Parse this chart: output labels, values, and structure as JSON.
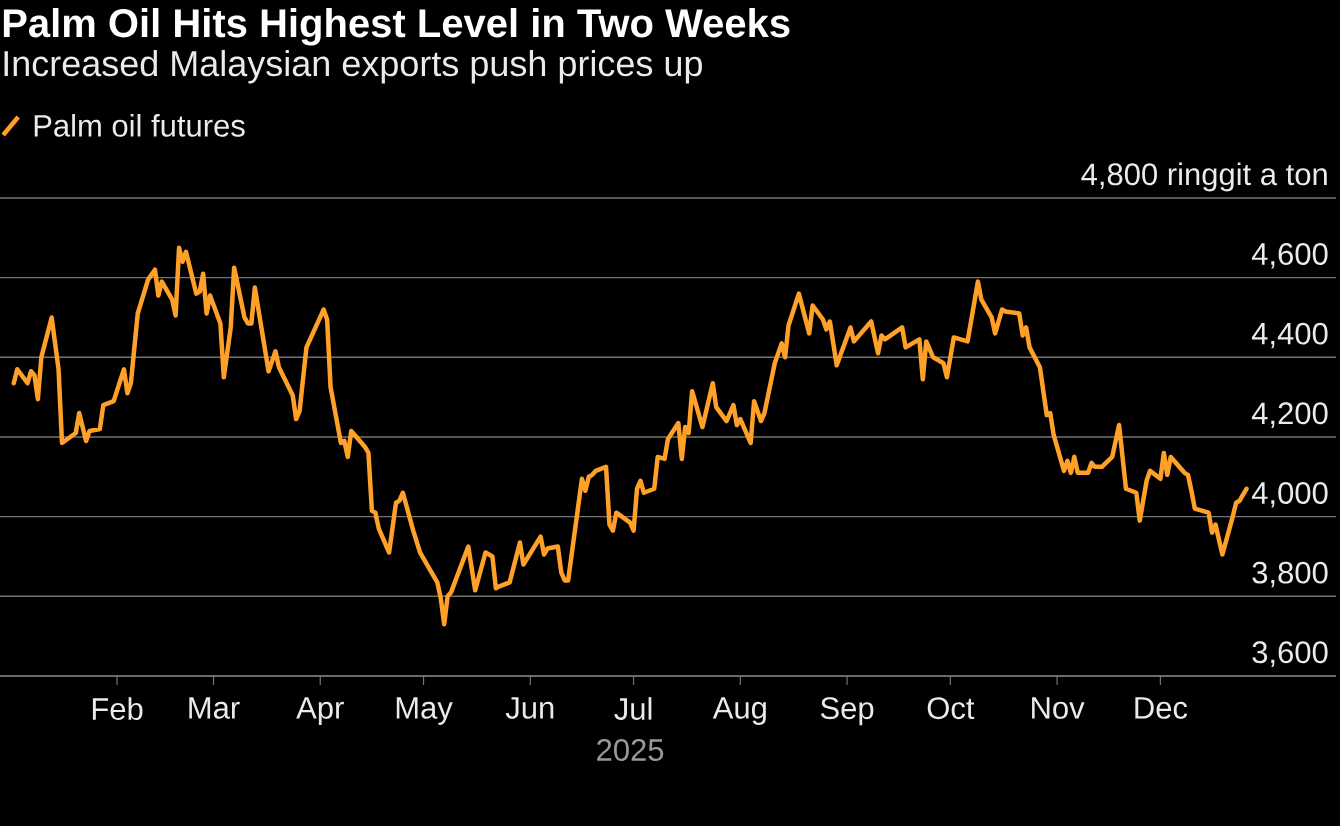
{
  "chart_data": {
    "type": "line",
    "title": "Palm Oil Hits Highest Level in Two Weeks",
    "subtitle": "Increased Malaysian exports push prices up",
    "xlabel": "2025",
    "x": [
      "2025-01-02",
      "2025-01-03",
      "2025-01-06",
      "2025-01-07",
      "2025-01-08",
      "2025-01-09",
      "2025-01-10",
      "2025-01-13",
      "2025-01-15",
      "2025-01-16",
      "2025-01-20",
      "2025-01-21",
      "2025-01-23",
      "2025-01-24",
      "2025-01-27",
      "2025-01-28",
      "2025-01-31",
      "2025-02-03",
      "2025-02-04",
      "2025-02-05",
      "2025-02-07",
      "2025-02-10",
      "2025-02-12",
      "2025-02-13",
      "2025-02-14",
      "2025-02-17",
      "2025-02-18",
      "2025-02-19",
      "2025-02-20",
      "2025-02-21",
      "2025-02-24",
      "2025-02-25",
      "2025-02-26",
      "2025-02-27",
      "2025-02-28",
      "2025-03-03",
      "2025-03-04",
      "2025-03-06",
      "2025-03-07",
      "2025-03-10",
      "2025-03-11",
      "2025-03-12",
      "2025-03-13",
      "2025-03-17",
      "2025-03-19",
      "2025-03-20",
      "2025-03-24",
      "2025-03-25",
      "2025-03-26",
      "2025-03-28",
      "2025-04-02",
      "2025-04-03",
      "2025-04-04",
      "2025-04-07",
      "2025-04-08",
      "2025-04-09",
      "2025-04-10",
      "2025-04-14",
      "2025-04-15",
      "2025-04-16",
      "2025-04-17",
      "2025-04-18",
      "2025-04-21",
      "2025-04-23",
      "2025-04-24",
      "2025-04-25",
      "2025-04-28",
      "2025-04-30",
      "2025-05-05",
      "2025-05-06",
      "2025-05-07",
      "2025-05-08",
      "2025-05-09",
      "2025-05-14",
      "2025-05-16",
      "2025-05-19",
      "2025-05-21",
      "2025-05-22",
      "2025-05-23",
      "2025-05-26",
      "2025-05-29",
      "2025-05-30",
      "2025-06-04",
      "2025-06-05",
      "2025-06-06",
      "2025-06-09",
      "2025-06-10",
      "2025-06-11",
      "2025-06-12",
      "2025-06-16",
      "2025-06-17",
      "2025-06-18",
      "2025-06-19",
      "2025-06-20",
      "2025-06-23",
      "2025-06-24",
      "2025-06-25",
      "2025-06-26",
      "2025-06-30",
      "2025-07-01",
      "2025-07-02",
      "2025-07-03",
      "2025-07-04",
      "2025-07-07",
      "2025-07-08",
      "2025-07-10",
      "2025-07-11",
      "2025-07-14",
      "2025-07-15",
      "2025-07-16",
      "2025-07-17",
      "2025-07-18",
      "2025-07-21",
      "2025-07-24",
      "2025-07-25",
      "2025-07-28",
      "2025-07-30",
      "2025-07-31",
      "2025-08-01",
      "2025-08-04",
      "2025-08-05",
      "2025-08-07",
      "2025-08-08",
      "2025-08-11",
      "2025-08-13",
      "2025-08-14",
      "2025-08-15",
      "2025-08-18",
      "2025-08-21",
      "2025-08-22",
      "2025-08-25",
      "2025-08-26",
      "2025-08-27",
      "2025-08-29",
      "2025-09-02",
      "2025-09-03",
      "2025-09-08",
      "2025-09-10",
      "2025-09-11",
      "2025-09-12",
      "2025-09-17",
      "2025-09-18",
      "2025-09-22",
      "2025-09-23",
      "2025-09-24",
      "2025-09-26",
      "2025-09-29",
      "2025-09-30",
      "2025-10-02",
      "2025-10-06",
      "2025-10-09",
      "2025-10-10",
      "2025-10-13",
      "2025-10-14",
      "2025-10-16",
      "2025-10-17",
      "2025-10-21",
      "2025-10-22",
      "2025-10-23",
      "2025-10-24",
      "2025-10-27",
      "2025-10-29",
      "2025-10-30",
      "2025-10-31",
      "2025-11-03",
      "2025-11-04",
      "2025-11-05",
      "2025-11-06",
      "2025-11-07",
      "2025-11-10",
      "2025-11-11",
      "2025-11-12",
      "2025-11-14",
      "2025-11-17",
      "2025-11-19",
      "2025-11-21",
      "2025-11-24",
      "2025-11-25",
      "2025-11-27",
      "2025-11-28",
      "2025-12-01",
      "2025-12-02",
      "2025-12-03",
      "2025-12-04",
      "2025-12-08",
      "2025-12-09",
      "2025-12-10",
      "2025-12-11",
      "2025-12-15",
      "2025-12-16",
      "2025-12-17",
      "2025-12-19",
      "2025-12-22",
      "2025-12-23",
      "2025-12-24",
      "2025-12-26"
    ],
    "series": [
      {
        "name": "Palm oil futures",
        "color": "#ffa028",
        "values": [
          4335,
          4370,
          4335,
          4365,
          4355,
          4295,
          4400,
          4500,
          4370,
          4185,
          4210,
          4260,
          4190,
          4215,
          4220,
          4280,
          4290,
          4370,
          4310,
          4335,
          4510,
          4595,
          4620,
          4555,
          4590,
          4545,
          4505,
          4675,
          4640,
          4665,
          4560,
          4565,
          4610,
          4510,
          4555,
          4485,
          4350,
          4475,
          4625,
          4500,
          4485,
          4485,
          4575,
          4365,
          4415,
          4375,
          4305,
          4245,
          4265,
          4425,
          4520,
          4495,
          4325,
          4185,
          4190,
          4150,
          4215,
          4175,
          4160,
          4015,
          4010,
          3970,
          3910,
          4035,
          4040,
          4060,
          3965,
          3910,
          3835,
          3795,
          3730,
          3800,
          3810,
          3925,
          3815,
          3910,
          3900,
          3820,
          3825,
          3835,
          3935,
          3880,
          3950,
          3905,
          3920,
          3925,
          3860,
          3840,
          3840,
          4095,
          4065,
          4100,
          4105,
          4115,
          4125,
          3980,
          3965,
          4010,
          3985,
          3965,
          4070,
          4090,
          4060,
          4070,
          4150,
          4145,
          4195,
          4235,
          4145,
          4225,
          4210,
          4315,
          4225,
          4335,
          4275,
          4240,
          4280,
          4230,
          4245,
          4185,
          4290,
          4240,
          4260,
          4385,
          4435,
          4400,
          4480,
          4560,
          4460,
          4530,
          4495,
          4470,
          4490,
          4380,
          4475,
          4440,
          4490,
          4410,
          4455,
          4445,
          4475,
          4425,
          4445,
          4345,
          4440,
          4400,
          4385,
          4350,
          4450,
          4440,
          4590,
          4545,
          4500,
          4460,
          4520,
          4515,
          4510,
          4455,
          4475,
          4425,
          4375,
          4255,
          4260,
          4205,
          4115,
          4140,
          4110,
          4150,
          4110,
          4110,
          4135,
          4125,
          4125,
          4150,
          4230,
          4070,
          4060,
          3990,
          4090,
          4115,
          4095,
          4160,
          4105,
          4150,
          4110,
          4105,
          4065,
          4020,
          4010,
          3960,
          3980,
          3905,
          4000,
          4035,
          4040,
          4070
        ]
      }
    ],
    "xlim": [
      "2024-12-29",
      "2026-01-21"
    ],
    "ylim": [
      3600,
      4800
    ],
    "xticks": [
      {
        "value": "2025-02-01",
        "label": "Feb"
      },
      {
        "value": "2025-03-01",
        "label": "Mar"
      },
      {
        "value": "2025-04-01",
        "label": "Apr"
      },
      {
        "value": "2025-05-01",
        "label": "May"
      },
      {
        "value": "2025-06-01",
        "label": "Jun"
      },
      {
        "value": "2025-07-01",
        "label": "Jul"
      },
      {
        "value": "2025-08-01",
        "label": "Aug"
      },
      {
        "value": "2025-09-01",
        "label": "Sep"
      },
      {
        "value": "2025-10-01",
        "label": "Oct"
      },
      {
        "value": "2025-11-01",
        "label": "Nov"
      },
      {
        "value": "2025-12-01",
        "label": "Dec"
      }
    ],
    "yticks": [
      {
        "value": 3600,
        "label": "3,600"
      },
      {
        "value": 3800,
        "label": "3,800"
      },
      {
        "value": 4000,
        "label": "4,000"
      },
      {
        "value": 4200,
        "label": "4,200"
      },
      {
        "value": 4400,
        "label": "4,400"
      },
      {
        "value": 4600,
        "label": "4,600"
      },
      {
        "value": 4800,
        "label": "4,800 ringgit a ton"
      }
    ],
    "grid": "y",
    "legend": "top left"
  }
}
